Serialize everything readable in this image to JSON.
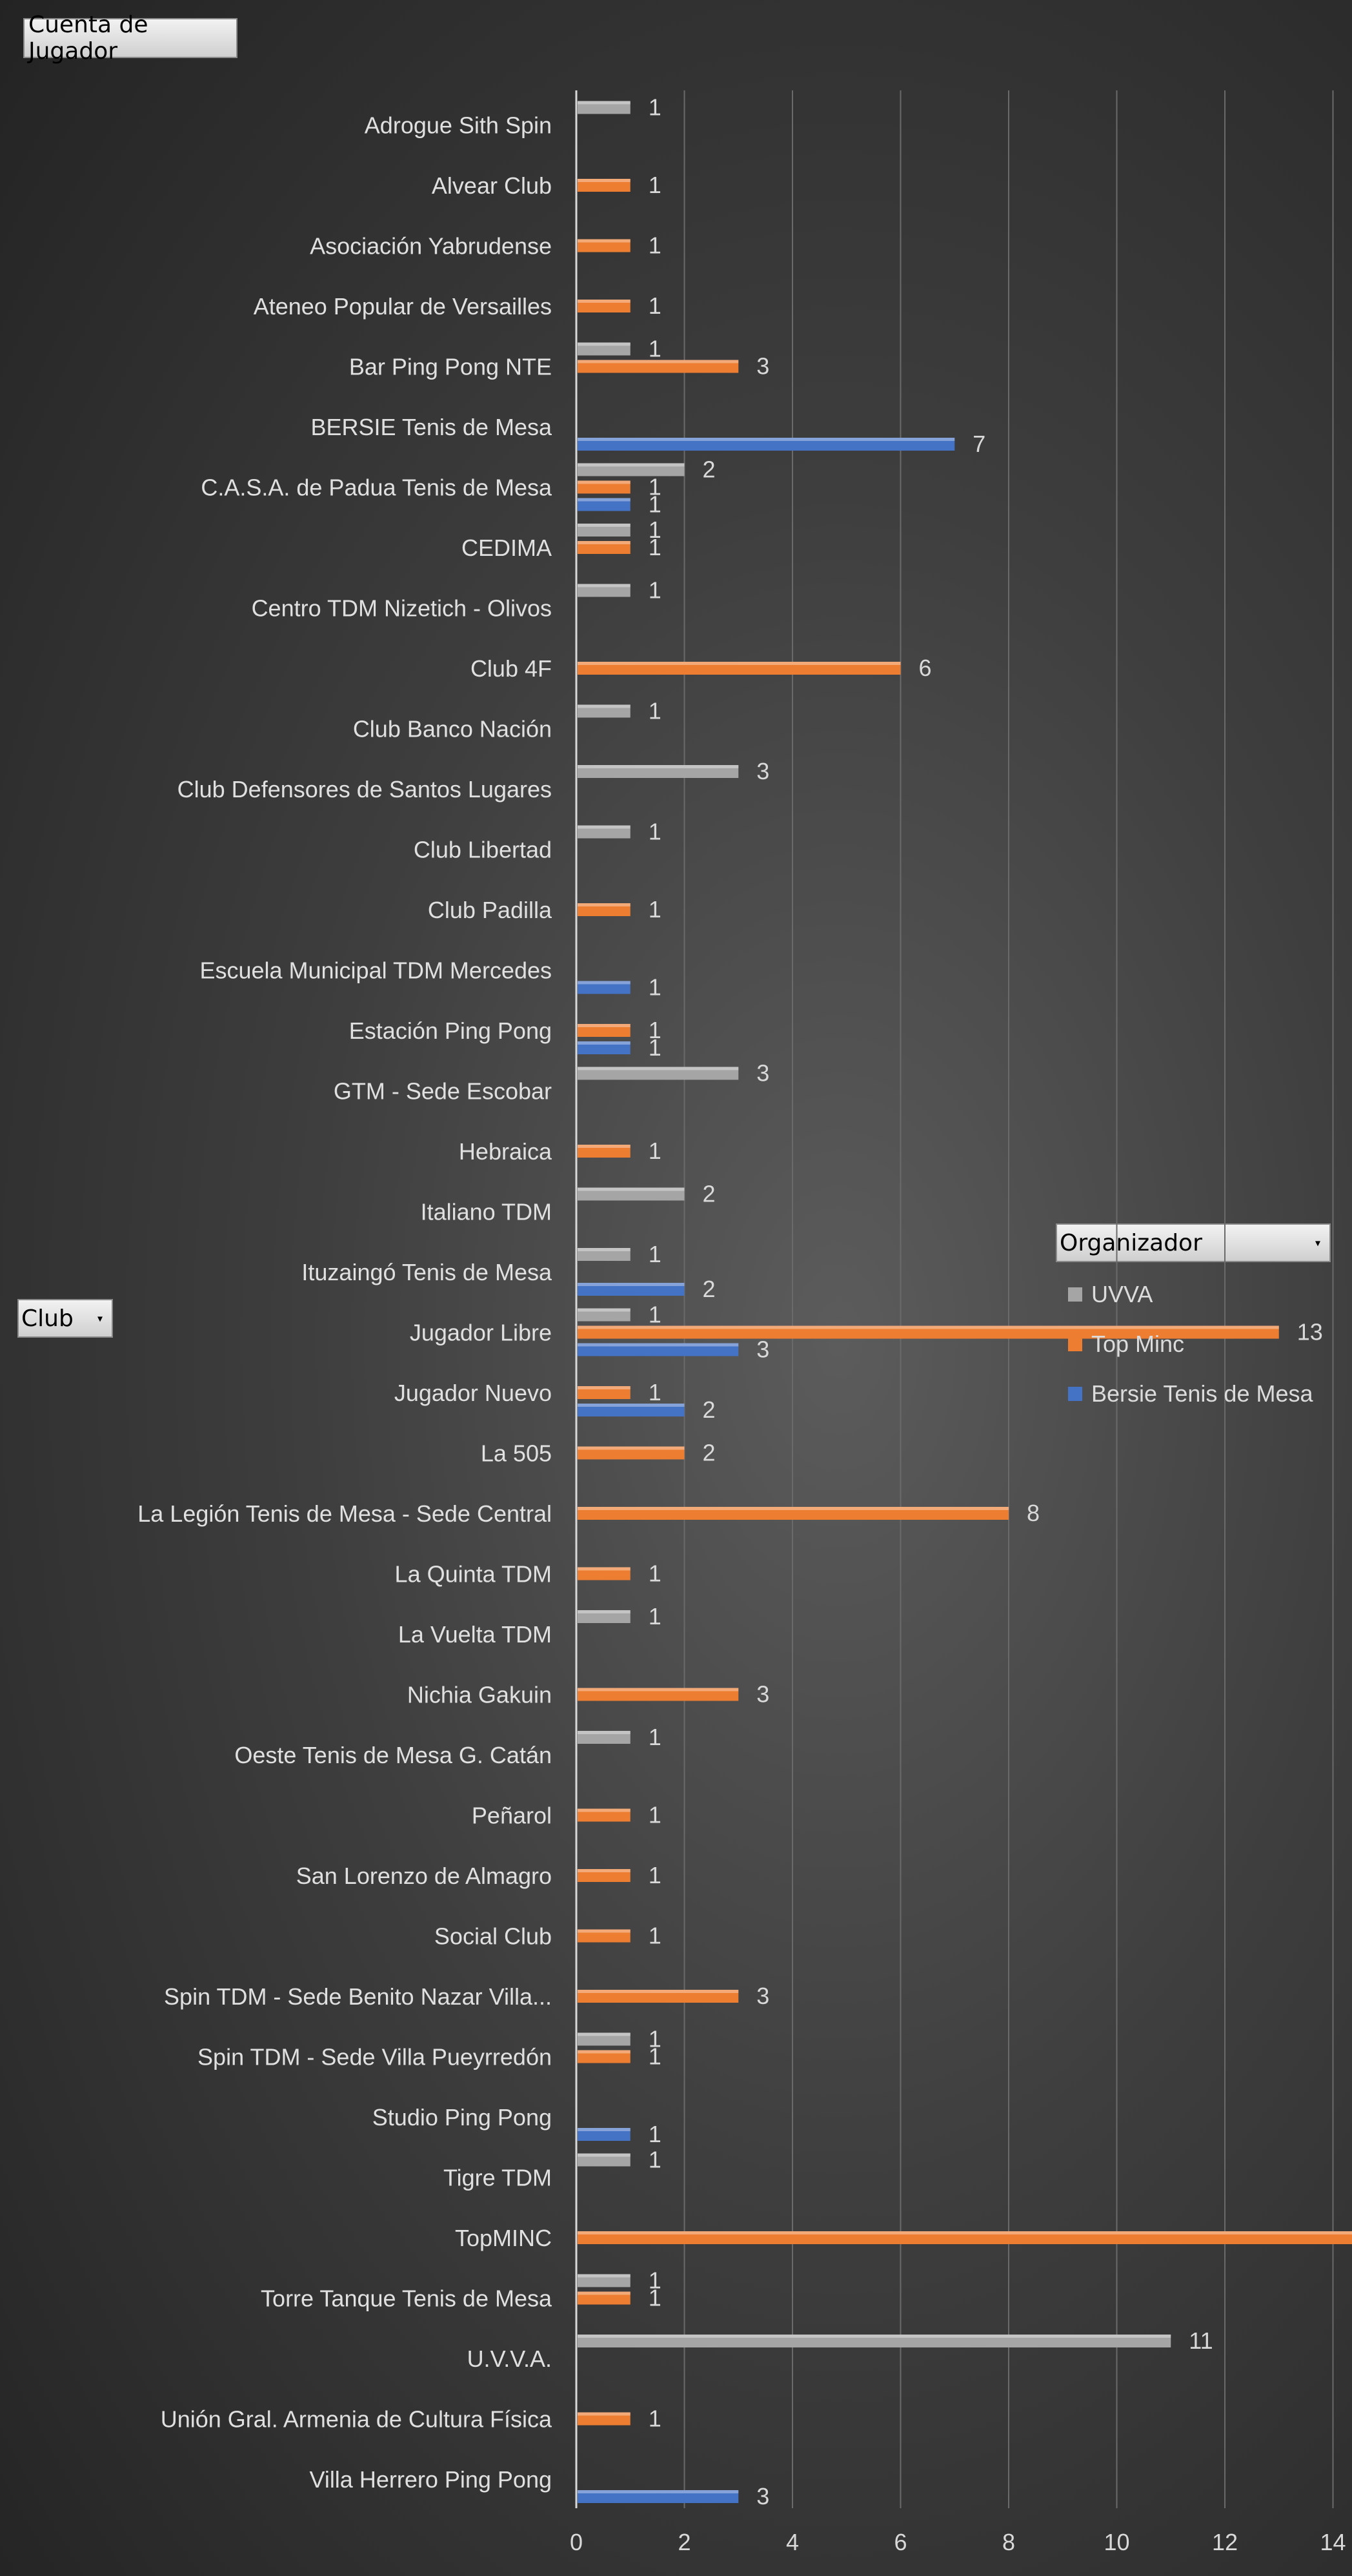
{
  "pivot": {
    "value_field": "Cuenta de Jugador",
    "row_field": "Club",
    "legend_field": "Organizador"
  },
  "colors": {
    "UVVA": "#a5a5a5",
    "Top Minc": "#ed7d31",
    "Bersie Tenis de Mesa": "#4472c4"
  },
  "chart_data": {
    "type": "bar",
    "orientation": "horizontal",
    "title": "",
    "xlabel": "",
    "ylabel": "",
    "xlim": [
      0,
      16
    ],
    "xticks": [
      0,
      2,
      4,
      6,
      8,
      10,
      12,
      14,
      16
    ],
    "grid": true,
    "legend_position": "right",
    "categories": [
      "Adrogue Sith Spin",
      "Alvear Club",
      "Asociación Yabrudense",
      "Ateneo Popular de Versailles",
      "Bar Ping Pong NTE",
      "BERSIE Tenis de Mesa",
      "C.A.S.A. de Padua Tenis de Mesa",
      "CEDIMA",
      "Centro TDM Nizetich - Olivos",
      "Club 4F",
      "Club Banco Nación",
      "Club Defensores de Santos Lugares",
      "Club Libertad",
      "Club Padilla",
      "Escuela Municipal TDM Mercedes",
      "Estación Ping Pong",
      "GTM - Sede Escobar",
      "Hebraica",
      "Italiano TDM",
      "Ituzaingó Tenis de Mesa",
      "Jugador Libre",
      "Jugador Nuevo",
      "La 505",
      "La Legión Tenis de Mesa - Sede Central",
      "La Quinta TDM",
      "La Vuelta TDM",
      "Nichia Gakuin",
      "Oeste Tenis de Mesa G. Catán",
      "Peñarol",
      "San Lorenzo de Almagro",
      "Social Club",
      "Spin TDM - Sede Benito Nazar Villa...",
      "Spin TDM - Sede Villa Pueyrredón",
      "Studio Ping Pong",
      "Tigre TDM",
      "TopMINC",
      "Torre Tanque Tenis de Mesa",
      "U.V.V.A.",
      "Unión Gral. Armenia de Cultura Física",
      "Villa Herrero Ping Pong"
    ],
    "series": [
      {
        "name": "UVVA",
        "values": [
          1,
          null,
          null,
          null,
          1,
          null,
          2,
          1,
          1,
          null,
          1,
          3,
          1,
          null,
          null,
          null,
          3,
          null,
          2,
          1,
          1,
          null,
          null,
          null,
          null,
          1,
          null,
          1,
          null,
          null,
          null,
          null,
          1,
          null,
          1,
          null,
          1,
          11,
          null,
          null
        ]
      },
      {
        "name": "Top Minc",
        "values": [
          null,
          1,
          1,
          1,
          3,
          null,
          1,
          1,
          null,
          6,
          null,
          null,
          null,
          1,
          null,
          1,
          null,
          1,
          null,
          null,
          13,
          1,
          2,
          8,
          1,
          null,
          3,
          null,
          1,
          1,
          1,
          3,
          1,
          null,
          null,
          15,
          1,
          null,
          1,
          null
        ]
      },
      {
        "name": "Bersie Tenis de Mesa",
        "values": [
          null,
          null,
          null,
          null,
          null,
          7,
          1,
          null,
          null,
          null,
          null,
          null,
          null,
          null,
          1,
          1,
          null,
          null,
          null,
          2,
          3,
          2,
          null,
          null,
          null,
          null,
          null,
          null,
          null,
          null,
          null,
          null,
          null,
          1,
          null,
          null,
          null,
          null,
          null,
          3
        ]
      }
    ]
  }
}
